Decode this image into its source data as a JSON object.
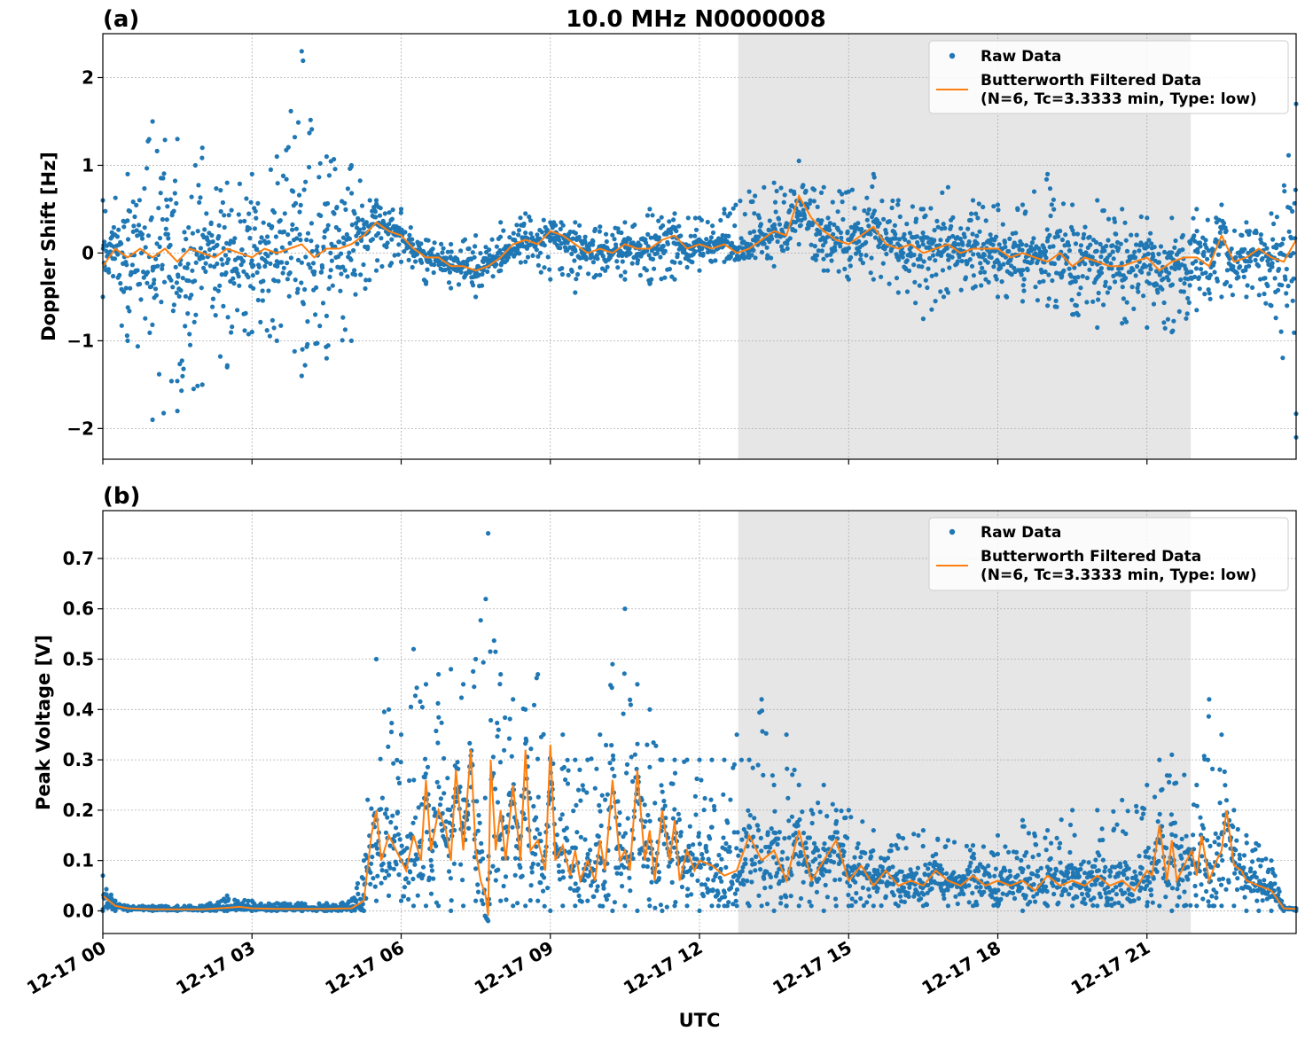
{
  "figure": {
    "title": "10.0 MHz N0000008",
    "xlabel": "UTC",
    "x_ticks": [
      "12-17 00",
      "12-17 03",
      "12-17 06",
      "12-17 09",
      "12-17 12",
      "12-17 15",
      "12-17 18",
      "12-17 21"
    ],
    "shaded_interval_hours": [
      12.78,
      21.88
    ],
    "colors": {
      "raw": "#1f77b4",
      "filtered": "#ff7f0e",
      "shade": "#e6e6e6",
      "grid": "#b0b0b0"
    },
    "legend": {
      "raw_label": "Raw Data",
      "filtered_label_line1": "Butterworth Filtered Data",
      "filtered_label_line2": "(N=6, Tc=3.3333 min, Type: low)"
    }
  },
  "chart_data": [
    {
      "panel": "(a)",
      "type": "scatter",
      "ylabel": "Doppler Shift [Hz]",
      "ylim": [
        -2.35,
        2.5
      ],
      "y_ticks": [
        -2,
        -1,
        0,
        1,
        2
      ],
      "y_tick_labels": [
        "−2",
        "−1",
        "0",
        "1",
        "2"
      ],
      "xlim_hours": [
        0,
        24
      ],
      "grid": true,
      "legend_position": "top-right",
      "series": [
        {
          "name": "Raw Data",
          "kind": "scatter",
          "envelope": {
            "x": [
              0.0,
              0.5,
              1.0,
              1.5,
              2.0,
              2.5,
              3.0,
              3.5,
              4.0,
              4.5,
              5.0,
              5.5,
              6.0,
              6.5,
              7.0,
              7.5,
              8.0,
              8.5,
              9.0,
              9.5,
              10.0,
              10.5,
              11.0,
              11.5,
              12.0,
              12.5,
              13.0,
              13.5,
              14.0,
              14.5,
              15.0,
              15.5,
              16.0,
              16.5,
              17.0,
              17.5,
              18.0,
              18.5,
              19.0,
              19.5,
              20.0,
              20.5,
              21.0,
              21.5,
              22.0,
              22.5,
              23.0,
              23.5,
              24.0
            ],
            "ymax": [
              0.6,
              0.9,
              1.5,
              1.3,
              1.2,
              0.8,
              0.9,
              1.1,
              2.3,
              1.1,
              1.0,
              0.6,
              0.5,
              0.15,
              0.1,
              0.2,
              0.35,
              0.45,
              0.35,
              0.35,
              0.3,
              0.35,
              0.5,
              0.45,
              0.4,
              0.5,
              0.7,
              0.8,
              1.05,
              0.75,
              0.7,
              0.9,
              0.6,
              0.5,
              0.75,
              0.6,
              0.55,
              0.55,
              0.9,
              0.55,
              0.6,
              0.5,
              0.4,
              0.4,
              0.5,
              0.55,
              0.35,
              0.45,
              1.7
            ],
            "ymin": [
              -0.5,
              -1.0,
              -1.9,
              -1.8,
              -1.5,
              -1.3,
              -0.9,
              -1.0,
              -1.4,
              -1.2,
              -1.0,
              -0.2,
              -0.1,
              -0.35,
              -0.4,
              -0.5,
              -0.2,
              -0.1,
              -0.3,
              -0.45,
              -0.25,
              -0.3,
              -0.35,
              -0.3,
              -0.2,
              -0.1,
              -0.05,
              -0.15,
              0.1,
              -0.2,
              -0.3,
              -0.3,
              -0.45,
              -0.75,
              -0.45,
              -0.4,
              -0.5,
              -0.55,
              -0.6,
              -0.7,
              -0.85,
              -0.8,
              -0.85,
              -0.9,
              -0.65,
              -0.5,
              -0.5,
              -0.6,
              -2.1
            ]
          }
        },
        {
          "name": "Butterworth Filtered Data",
          "kind": "line",
          "x": [
            0.0,
            0.25,
            0.5,
            0.75,
            1.0,
            1.25,
            1.5,
            1.75,
            2.0,
            2.25,
            2.5,
            2.75,
            3.0,
            3.25,
            3.5,
            3.75,
            4.0,
            4.25,
            4.5,
            4.75,
            5.0,
            5.25,
            5.5,
            5.75,
            6.0,
            6.25,
            6.5,
            6.75,
            7.0,
            7.25,
            7.5,
            7.75,
            8.0,
            8.25,
            8.5,
            8.75,
            9.0,
            9.25,
            9.5,
            9.75,
            10.0,
            10.25,
            10.5,
            10.75,
            11.0,
            11.25,
            11.5,
            11.75,
            12.0,
            12.25,
            12.5,
            12.75,
            13.0,
            13.25,
            13.5,
            13.75,
            14.0,
            14.25,
            14.5,
            14.75,
            15.0,
            15.25,
            15.5,
            15.75,
            16.0,
            16.25,
            16.5,
            16.75,
            17.0,
            17.25,
            17.5,
            17.75,
            18.0,
            18.25,
            18.5,
            18.75,
            19.0,
            19.25,
            19.5,
            19.75,
            20.0,
            20.25,
            20.5,
            20.75,
            21.0,
            21.25,
            21.5,
            21.75,
            22.0,
            22.25,
            22.5,
            22.75,
            23.0,
            23.25,
            23.5,
            23.75,
            24.0
          ],
          "y": [
            -0.15,
            0.05,
            -0.05,
            0.05,
            -0.05,
            0.05,
            -0.1,
            0.05,
            0.0,
            -0.05,
            0.05,
            0.0,
            -0.05,
            0.05,
            0.0,
            0.05,
            0.1,
            -0.05,
            0.05,
            0.05,
            0.1,
            0.2,
            0.35,
            0.25,
            0.2,
            0.05,
            -0.05,
            -0.05,
            -0.15,
            -0.15,
            -0.2,
            -0.15,
            -0.05,
            0.1,
            0.15,
            0.1,
            0.25,
            0.2,
            0.1,
            0.0,
            0.05,
            0.0,
            0.1,
            0.05,
            0.05,
            0.15,
            0.2,
            0.05,
            0.1,
            0.05,
            0.1,
            0.0,
            0.05,
            0.15,
            0.25,
            0.2,
            0.65,
            0.4,
            0.25,
            0.15,
            0.1,
            0.2,
            0.3,
            0.1,
            0.05,
            0.1,
            0.0,
            0.05,
            0.1,
            0.0,
            0.05,
            0.05,
            0.05,
            -0.05,
            0.0,
            -0.05,
            -0.1,
            0.0,
            -0.15,
            -0.05,
            -0.1,
            -0.15,
            -0.15,
            -0.1,
            -0.05,
            -0.2,
            -0.1,
            -0.05,
            -0.05,
            -0.15,
            0.2,
            -0.1,
            -0.05,
            0.05,
            -0.05,
            -0.1,
            0.15
          ]
        }
      ]
    },
    {
      "panel": "(b)",
      "type": "scatter",
      "ylabel": "Peak Voltage [V]",
      "ylim": [
        -0.045,
        0.795
      ],
      "y_ticks": [
        0.0,
        0.1,
        0.2,
        0.3,
        0.4,
        0.5,
        0.6,
        0.7
      ],
      "y_tick_labels": [
        "0.0",
        "0.1",
        "0.2",
        "0.3",
        "0.4",
        "0.5",
        "0.6",
        "0.7"
      ],
      "xlim_hours": [
        0,
        24
      ],
      "grid": true,
      "legend_position": "top-right",
      "series": [
        {
          "name": "Raw Data",
          "kind": "scatter",
          "envelope": {
            "x": [
              0.0,
              0.25,
              0.5,
              1.0,
              1.5,
              2.0,
              2.5,
              3.0,
              3.5,
              4.0,
              4.5,
              5.0,
              5.25,
              5.5,
              5.75,
              6.0,
              6.25,
              6.5,
              6.75,
              7.0,
              7.25,
              7.5,
              7.75,
              8.0,
              8.25,
              8.5,
              8.75,
              9.0,
              9.25,
              9.5,
              9.75,
              10.0,
              10.25,
              10.5,
              10.75,
              11.0,
              11.25,
              11.5,
              11.75,
              12.0,
              12.25,
              12.5,
              12.75,
              13.0,
              13.25,
              13.5,
              13.75,
              14.0,
              14.25,
              14.5,
              14.75,
              15.0,
              15.5,
              16.0,
              16.5,
              17.0,
              17.5,
              18.0,
              18.5,
              19.0,
              19.5,
              20.0,
              20.5,
              21.0,
              21.25,
              21.5,
              21.75,
              22.0,
              22.25,
              22.5,
              22.75,
              23.0,
              23.25,
              23.5,
              23.75,
              24.0
            ],
            "ymax": [
              0.07,
              0.02,
              0.01,
              0.01,
              0.01,
              0.01,
              0.03,
              0.02,
              0.015,
              0.015,
              0.015,
              0.02,
              0.1,
              0.5,
              0.4,
              0.35,
              0.52,
              0.45,
              0.47,
              0.48,
              0.45,
              0.5,
              0.75,
              0.47,
              0.42,
              0.4,
              0.47,
              0.3,
              0.35,
              0.3,
              0.3,
              0.35,
              0.49,
              0.6,
              0.45,
              0.4,
              0.3,
              0.3,
              0.3,
              0.3,
              0.3,
              0.3,
              0.35,
              0.3,
              0.42,
              0.25,
              0.35,
              0.25,
              0.2,
              0.25,
              0.2,
              0.2,
              0.16,
              0.15,
              0.16,
              0.14,
              0.13,
              0.15,
              0.18,
              0.16,
              0.2,
              0.2,
              0.22,
              0.25,
              0.3,
              0.31,
              0.27,
              0.25,
              0.42,
              0.35,
              0.2,
              0.15,
              0.13,
              0.1,
              0.01,
              0.005
            ],
            "ymin": [
              0.0,
              0.0,
              0.0,
              0.0,
              0.0,
              0.0,
              0.0,
              0.0,
              0.0,
              0.0,
              0.0,
              0.0,
              0.0,
              0.02,
              0.03,
              0.02,
              0.01,
              0.01,
              0.01,
              0.0,
              0.01,
              0.02,
              -0.02,
              0.02,
              0.01,
              0.01,
              0.02,
              0.0,
              0.01,
              0.01,
              0.02,
              0.01,
              0.0,
              0.01,
              0.0,
              0.01,
              0.0,
              0.01,
              0.01,
              0.0,
              0.01,
              0.01,
              0.01,
              0.01,
              0.01,
              0.0,
              0.01,
              0.01,
              0.01,
              0.0,
              0.01,
              0.01,
              0.01,
              0.01,
              0.01,
              0.01,
              0.01,
              0.01,
              0.0,
              0.01,
              0.01,
              0.01,
              0.01,
              0.01,
              0.01,
              0.0,
              0.01,
              0.01,
              0.01,
              0.01,
              0.01,
              0.0,
              0.0,
              0.0,
              0.0,
              0.0
            ]
          }
        },
        {
          "name": "Butterworth Filtered Data",
          "kind": "line",
          "x": [
            0.0,
            0.25,
            0.5,
            1.0,
            1.5,
            2.0,
            2.5,
            2.75,
            3.0,
            3.5,
            4.0,
            4.5,
            5.0,
            5.25,
            5.4,
            5.5,
            5.6,
            5.75,
            5.9,
            6.0,
            6.1,
            6.25,
            6.4,
            6.5,
            6.6,
            6.75,
            6.9,
            7.0,
            7.1,
            7.25,
            7.4,
            7.5,
            7.6,
            7.7,
            7.75,
            7.8,
            7.9,
            8.0,
            8.1,
            8.25,
            8.4,
            8.5,
            8.6,
            8.75,
            8.9,
            9.0,
            9.1,
            9.25,
            9.4,
            9.5,
            9.6,
            9.75,
            9.9,
            10.0,
            10.1,
            10.25,
            10.4,
            10.5,
            10.6,
            10.75,
            10.9,
            11.0,
            11.1,
            11.25,
            11.4,
            11.5,
            11.6,
            11.75,
            11.9,
            12.0,
            12.25,
            12.5,
            12.75,
            13.0,
            13.25,
            13.5,
            13.75,
            14.0,
            14.25,
            14.5,
            14.75,
            15.0,
            15.25,
            15.5,
            15.75,
            16.0,
            16.25,
            16.5,
            16.75,
            17.0,
            17.25,
            17.5,
            17.75,
            18.0,
            18.25,
            18.5,
            18.75,
            19.0,
            19.25,
            19.5,
            19.75,
            20.0,
            20.25,
            20.5,
            20.75,
            21.0,
            21.1,
            21.25,
            21.4,
            21.5,
            21.6,
            21.75,
            21.9,
            22.0,
            22.1,
            22.25,
            22.4,
            22.5,
            22.6,
            22.75,
            22.9,
            23.0,
            23.25,
            23.5,
            23.75,
            24.0
          ],
          "y": [
            0.03,
            0.01,
            0.005,
            0.003,
            0.003,
            0.003,
            0.006,
            0.008,
            0.005,
            0.004,
            0.004,
            0.004,
            0.005,
            0.02,
            0.15,
            0.2,
            0.1,
            0.15,
            0.12,
            0.1,
            0.08,
            0.15,
            0.1,
            0.26,
            0.12,
            0.2,
            0.16,
            0.1,
            0.28,
            0.12,
            0.32,
            0.12,
            0.06,
            0.03,
            -0.01,
            0.3,
            0.12,
            0.2,
            0.1,
            0.25,
            0.1,
            0.32,
            0.12,
            0.14,
            0.08,
            0.33,
            0.1,
            0.13,
            0.07,
            0.12,
            0.06,
            0.1,
            0.06,
            0.14,
            0.08,
            0.26,
            0.1,
            0.12,
            0.08,
            0.28,
            0.1,
            0.16,
            0.06,
            0.2,
            0.1,
            0.18,
            0.06,
            0.12,
            0.08,
            0.1,
            0.09,
            0.07,
            0.08,
            0.15,
            0.1,
            0.12,
            0.06,
            0.16,
            0.06,
            0.1,
            0.14,
            0.06,
            0.09,
            0.05,
            0.08,
            0.05,
            0.06,
            0.05,
            0.08,
            0.06,
            0.05,
            0.07,
            0.05,
            0.06,
            0.05,
            0.06,
            0.04,
            0.07,
            0.05,
            0.06,
            0.05,
            0.07,
            0.05,
            0.06,
            0.04,
            0.08,
            0.07,
            0.17,
            0.06,
            0.14,
            0.06,
            0.09,
            0.12,
            0.07,
            0.15,
            0.06,
            0.1,
            0.12,
            0.2,
            0.09,
            0.08,
            0.06,
            0.05,
            0.04,
            0.005,
            0.004
          ]
        }
      ]
    }
  ]
}
